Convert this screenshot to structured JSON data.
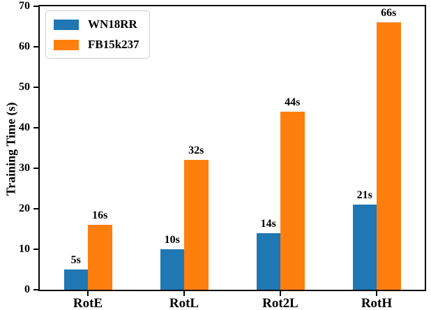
{
  "chart_data": {
    "type": "bar",
    "title": "",
    "xlabel": "",
    "ylabel": "Training Time (s)",
    "categories": [
      "RotE",
      "RotL",
      "Rot2L",
      "RotH"
    ],
    "series": [
      {
        "name": "WN18RR",
        "color": "#1f77b4",
        "values": [
          5,
          10,
          14,
          21
        ],
        "value_labels": [
          "5s",
          "10s",
          "14s",
          "21s"
        ]
      },
      {
        "name": "FB15k237",
        "color": "#ff7f0e",
        "values": [
          16,
          32,
          44,
          66
        ],
        "value_labels": [
          "16s",
          "32s",
          "44s",
          "66s"
        ]
      }
    ],
    "ylim": [
      0,
      70
    ],
    "yticks": [
      0,
      10,
      20,
      30,
      40,
      50,
      60,
      70
    ],
    "grid": false,
    "legend_position": "upper-left",
    "frame": "full-box"
  }
}
